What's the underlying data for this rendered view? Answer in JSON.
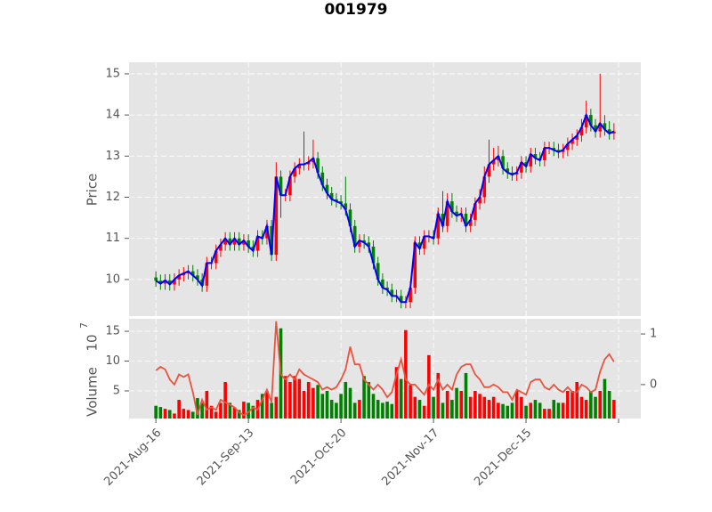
{
  "chart_data": {
    "type": "candlestick",
    "title": "001979",
    "ylabel": "Price",
    "ylim": [
      9.11,
      15.28
    ],
    "yticks": [
      10,
      11,
      12,
      13,
      14,
      15
    ],
    "xlim": [
      -5.8,
      104.8
    ],
    "xticks": [
      {
        "value": 0,
        "label": "2021-Aug-16"
      },
      {
        "value": 20,
        "label": "2021-Sep-13"
      },
      {
        "value": 40,
        "label": "2021-Oct-20"
      },
      {
        "value": 60,
        "label": "2021-Nov-17"
      },
      {
        "value": 80,
        "label": "2021-Dec-15"
      },
      {
        "value": 100,
        "label": null
      }
    ],
    "grid": true,
    "up_color": "#ff0000",
    "down_color": "#008000",
    "line_color": "#0000ff",
    "open": [
      10.05,
      9.97,
      9.9,
      9.98,
      9.88,
      10.0,
      10.1,
      10.15,
      10.2,
      10.1,
      10.0,
      9.85,
      10.4,
      10.4,
      10.7,
      10.85,
      11.0,
      10.85,
      11.0,
      10.85,
      10.95,
      10.8,
      10.7,
      11.05,
      11.0,
      11.3,
      10.6,
      12.5,
      12.05,
      12.05,
      12.5,
      12.7,
      12.8,
      12.8,
      12.85,
      12.95,
      12.6,
      12.3,
      12.1,
      11.95,
      11.9,
      11.85,
      11.7,
      11.3,
      10.8,
      10.95,
      10.9,
      10.8,
      10.4,
      10.0,
      9.8,
      9.75,
      9.6,
      9.6,
      9.45,
      9.45,
      9.8,
      10.9,
      10.75,
      11.05,
      11.05,
      11.0,
      11.6,
      11.3,
      11.9,
      11.65,
      11.55,
      11.6,
      11.3,
      11.45,
      11.85,
      12.0,
      12.5,
      12.8,
      12.9,
      13.0,
      12.7,
      12.6,
      12.55,
      12.6,
      12.85,
      12.75,
      13.05,
      12.95,
      12.9,
      13.2,
      13.2,
      13.15,
      13.1,
      13.15,
      13.3,
      13.4,
      13.5,
      13.7,
      14.0,
      13.75,
      13.6,
      13.8,
      13.65,
      13.55
    ],
    "high": [
      10.2,
      10.12,
      10.13,
      10.13,
      10.15,
      10.25,
      10.3,
      10.35,
      10.35,
      10.25,
      10.15,
      10.55,
      10.55,
      10.85,
      11.0,
      11.15,
      11.15,
      11.15,
      11.15,
      11.1,
      11.1,
      10.95,
      11.2,
      11.2,
      11.45,
      11.45,
      12.85,
      12.65,
      12.2,
      12.65,
      12.85,
      12.95,
      13.6,
      13.0,
      13.4,
      13.1,
      12.75,
      12.45,
      12.25,
      12.1,
      12.05,
      12.5,
      11.85,
      11.45,
      11.1,
      11.1,
      11.05,
      10.95,
      10.55,
      10.15,
      9.95,
      9.9,
      9.75,
      9.75,
      9.6,
      9.95,
      11.05,
      11.05,
      11.2,
      11.2,
      11.2,
      11.75,
      12.15,
      12.1,
      12.1,
      11.8,
      11.75,
      11.75,
      11.6,
      12.0,
      12.2,
      12.75,
      13.4,
      13.2,
      13.25,
      13.15,
      12.85,
      12.75,
      12.75,
      13.0,
      13.0,
      13.2,
      13.2,
      13.1,
      13.35,
      13.35,
      13.35,
      13.3,
      13.3,
      13.45,
      13.55,
      13.65,
      13.9,
      14.35,
      14.15,
      13.9,
      15.0,
      14.0,
      13.85,
      13.8
    ],
    "low": [
      9.82,
      9.75,
      9.75,
      9.73,
      9.73,
      9.85,
      9.95,
      10.0,
      9.95,
      9.85,
      9.7,
      9.7,
      10.25,
      10.25,
      10.55,
      10.7,
      10.7,
      10.7,
      10.7,
      10.7,
      10.65,
      10.55,
      10.55,
      10.85,
      10.85,
      10.45,
      10.45,
      11.5,
      11.9,
      11.9,
      12.35,
      12.55,
      12.65,
      12.65,
      12.7,
      12.45,
      12.15,
      11.95,
      11.8,
      11.75,
      11.7,
      11.55,
      11.15,
      10.65,
      10.65,
      10.75,
      10.65,
      10.25,
      9.85,
      9.65,
      9.6,
      9.45,
      9.45,
      9.3,
      9.3,
      9.3,
      9.65,
      10.6,
      10.6,
      10.9,
      10.85,
      10.85,
      11.15,
      11.15,
      11.5,
      11.4,
      11.4,
      11.15,
      11.15,
      11.3,
      11.7,
      11.85,
      12.35,
      12.65,
      12.75,
      12.55,
      12.45,
      12.4,
      12.4,
      12.45,
      12.6,
      12.6,
      12.8,
      12.75,
      12.75,
      13.05,
      13.0,
      12.95,
      12.95,
      13.0,
      13.15,
      13.25,
      13.35,
      13.55,
      13.6,
      13.45,
      13.45,
      13.5,
      13.4,
      13.4
    ],
    "close": [
      9.97,
      9.9,
      9.98,
      9.88,
      10.0,
      10.1,
      10.15,
      10.2,
      10.1,
      10.0,
      9.85,
      10.4,
      10.4,
      10.7,
      10.85,
      11.0,
      10.85,
      11.0,
      10.85,
      10.95,
      10.8,
      10.7,
      11.05,
      11.0,
      11.3,
      10.6,
      12.5,
      12.05,
      12.05,
      12.5,
      12.7,
      12.8,
      12.8,
      12.85,
      12.95,
      12.6,
      12.3,
      12.1,
      11.95,
      11.9,
      11.85,
      11.7,
      11.3,
      10.8,
      10.95,
      10.9,
      10.8,
      10.4,
      10.0,
      9.8,
      9.75,
      9.6,
      9.6,
      9.45,
      9.45,
      9.8,
      10.9,
      10.75,
      11.05,
      11.05,
      11.0,
      11.6,
      11.3,
      11.9,
      11.65,
      11.55,
      11.6,
      11.3,
      11.45,
      11.85,
      12.0,
      12.5,
      12.8,
      12.9,
      13.0,
      12.7,
      12.6,
      12.55,
      12.6,
      12.85,
      12.75,
      13.05,
      12.95,
      12.9,
      13.2,
      13.2,
      13.15,
      13.1,
      13.15,
      13.3,
      13.4,
      13.5,
      13.7,
      14.0,
      13.75,
      13.6,
      13.8,
      13.65,
      13.55,
      13.6
    ],
    "volume": {
      "ylabel": "Volume",
      "offset_base": "10",
      "offset_exponent": "7",
      "ylim": [
        0.37,
        17.1
      ],
      "yticks": [
        5,
        10,
        15
      ],
      "values": [
        2.5,
        2.3,
        2.0,
        1.8,
        1.2,
        3.5,
        2.0,
        1.8,
        1.5,
        3.8,
        3.0,
        5.0,
        2.5,
        1.5,
        3.0,
        6.5,
        3.0,
        2.2,
        1.8,
        3.2,
        3.0,
        2.5,
        3.5,
        4.5,
        5.0,
        3.0,
        4.0,
        15.5,
        7.5,
        6.5,
        7.5,
        7.0,
        5.0,
        6.5,
        5.5,
        6.0,
        4.5,
        5.0,
        3.5,
        3.0,
        4.5,
        6.5,
        5.5,
        3.0,
        3.5,
        7.5,
        6.5,
        4.5,
        3.5,
        3.0,
        3.2,
        2.8,
        9.0,
        7.0,
        15.2,
        6.0,
        4.0,
        3.5,
        2.5,
        11.0,
        4.0,
        8.0,
        3.0,
        5.0,
        3.5,
        5.5,
        5.0,
        8.0,
        4.0,
        5.0,
        4.5,
        4.0,
        3.5,
        4.0,
        3.0,
        2.8,
        2.5,
        3.0,
        5.0,
        4.0,
        2.5,
        3.0,
        3.5,
        3.0,
        2.0,
        2.0,
        3.5,
        3.0,
        3.0,
        5.0,
        5.0,
        6.5,
        4.0,
        3.5,
        5.0,
        4.0,
        5.0,
        7.0,
        5.0,
        3.5
      ],
      "y2lim": [
        -0.67,
        1.3
      ],
      "y2ticks": [
        0,
        1
      ],
      "indicator": {
        "color": "#e8543f",
        "axis": "y2",
        "values": [
          0.28,
          0.35,
          0.3,
          0.1,
          0.0,
          0.2,
          0.15,
          0.2,
          -0.15,
          -0.6,
          -0.3,
          -0.5,
          -0.45,
          -0.5,
          -0.3,
          -0.35,
          -0.4,
          -0.45,
          -0.55,
          -0.6,
          -0.55,
          -0.45,
          -0.5,
          -0.3,
          -0.1,
          -0.35,
          1.25,
          0.2,
          0.1,
          0.2,
          0.1,
          0.3,
          0.2,
          0.15,
          0.1,
          0.05,
          -0.1,
          -0.05,
          -0.1,
          -0.05,
          0.1,
          0.3,
          0.75,
          0.4,
          0.4,
          0.1,
          0.0,
          -0.1,
          0.0,
          -0.1,
          -0.25,
          -0.15,
          0.2,
          0.5,
          0.1,
          0.0,
          0.0,
          -0.1,
          -0.2,
          0.0,
          -0.1,
          0.1,
          -0.1,
          0.0,
          -0.1,
          0.2,
          0.35,
          0.4,
          0.4,
          0.2,
          0.1,
          -0.05,
          -0.05,
          0.0,
          -0.05,
          -0.15,
          -0.15,
          -0.3,
          -0.1,
          -0.15,
          -0.2,
          0.05,
          0.1,
          0.1,
          -0.05,
          -0.1,
          0.0,
          -0.1,
          -0.15,
          -0.05,
          -0.15,
          -0.15,
          0.0,
          -0.05,
          -0.15,
          -0.1,
          0.25,
          0.5,
          0.6,
          0.45
        ]
      }
    }
  }
}
